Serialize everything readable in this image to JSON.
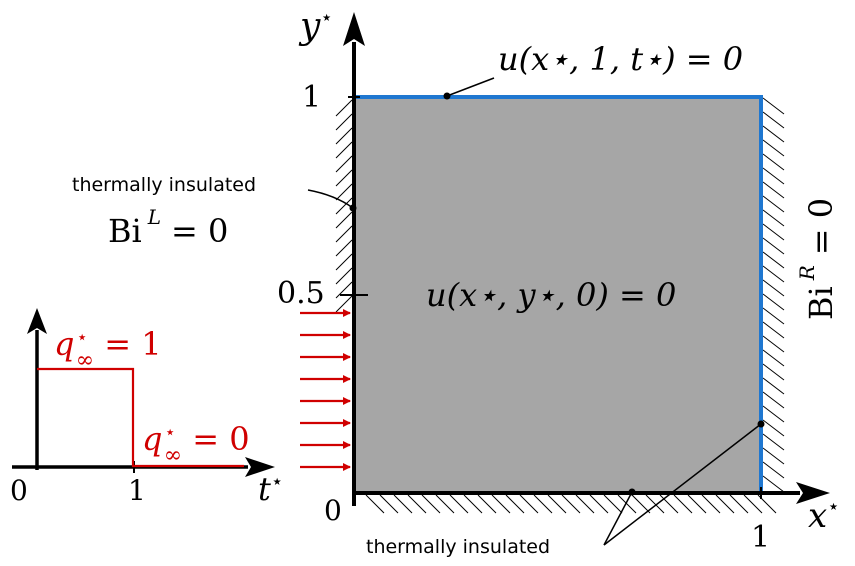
{
  "labels": {
    "y_axis": "y",
    "y_axis_sup": "⋆",
    "x_axis": "x",
    "x_axis_sup": "⋆",
    "t_axis": "t",
    "t_axis_sup": "⋆",
    "tick_1_y": "1",
    "tick_05_y": "0.5",
    "tick_0_origin": "0",
    "tick_1_x": "1",
    "inset_tick_0": "0",
    "inset_tick_1": "1"
  },
  "conditions": {
    "top": "u(x⋆, 1, t⋆) = 0",
    "initial": "u(x⋆, y⋆, 0) = 0",
    "bi_left_base": "Bi",
    "bi_left_sup": "L",
    "bi_left_rhs": "= 0",
    "bi_right_base": "Bi",
    "bi_right_sup": "R",
    "bi_right_rhs": "= 0",
    "flux_on_base": "q",
    "flux_on_sup": "⋆",
    "flux_on_sub": "∞",
    "flux_on_rhs": " = 1",
    "flux_off_base": "q",
    "flux_off_sup": "⋆",
    "flux_off_sub": "∞",
    "flux_off_rhs": " = 0"
  },
  "annotations": {
    "insulated_left": "thermally insulated",
    "insulated_bottom": "thermally insulated"
  },
  "colors": {
    "domain_fill": "#a6a6a6",
    "boundary": "#1f77d0",
    "flux": "#d00000",
    "axis": "#000000"
  }
}
